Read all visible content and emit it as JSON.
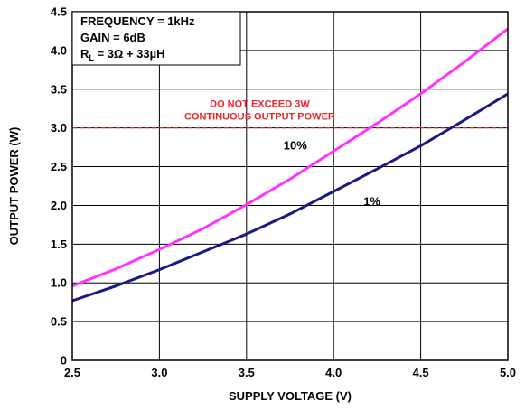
{
  "chart_data": {
    "type": "line",
    "xlabel": "SUPPLY VOLTAGE (V)",
    "ylabel": "OUTPUT POWER (W)",
    "xlim": [
      2.5,
      5.0
    ],
    "ylim": [
      0,
      4.5
    ],
    "xticks": [
      "2.5",
      "3.0",
      "3.5",
      "4.0",
      "4.5",
      "5.0"
    ],
    "yticks": [
      "0",
      "0.5",
      "1.0",
      "1.5",
      "2.0",
      "2.5",
      "3.0",
      "3.5",
      "4.0",
      "4.5"
    ],
    "grid": true,
    "conditions": {
      "frequency": "FREQUENCY = 1kHz",
      "gain": "GAIN = 6dB",
      "load_prefix": "R",
      "load_sub": "L",
      "load_value": " = 3Ω + 33µH"
    },
    "limit_line": {
      "y": 3.0,
      "label_line1": "DO NOT EXCEED 3W",
      "label_line2": "CONTINUOUS OUTPUT POWER",
      "color": "#e8272a"
    },
    "series": [
      {
        "name": "10%",
        "color": "#ff33ff",
        "x": [
          2.5,
          2.75,
          3.0,
          3.25,
          3.5,
          3.75,
          4.0,
          4.25,
          4.5,
          4.75,
          5.0
        ],
        "y": [
          0.96,
          1.18,
          1.43,
          1.7,
          2.01,
          2.34,
          2.7,
          3.06,
          3.44,
          3.85,
          4.28
        ]
      },
      {
        "name": "1%",
        "color": "#1a1a80",
        "x": [
          2.5,
          2.75,
          3.0,
          3.25,
          3.5,
          3.75,
          4.0,
          4.25,
          4.5,
          4.75,
          5.0
        ],
        "y": [
          0.77,
          0.96,
          1.17,
          1.4,
          1.63,
          1.89,
          2.18,
          2.47,
          2.77,
          3.1,
          3.44
        ]
      }
    ]
  }
}
